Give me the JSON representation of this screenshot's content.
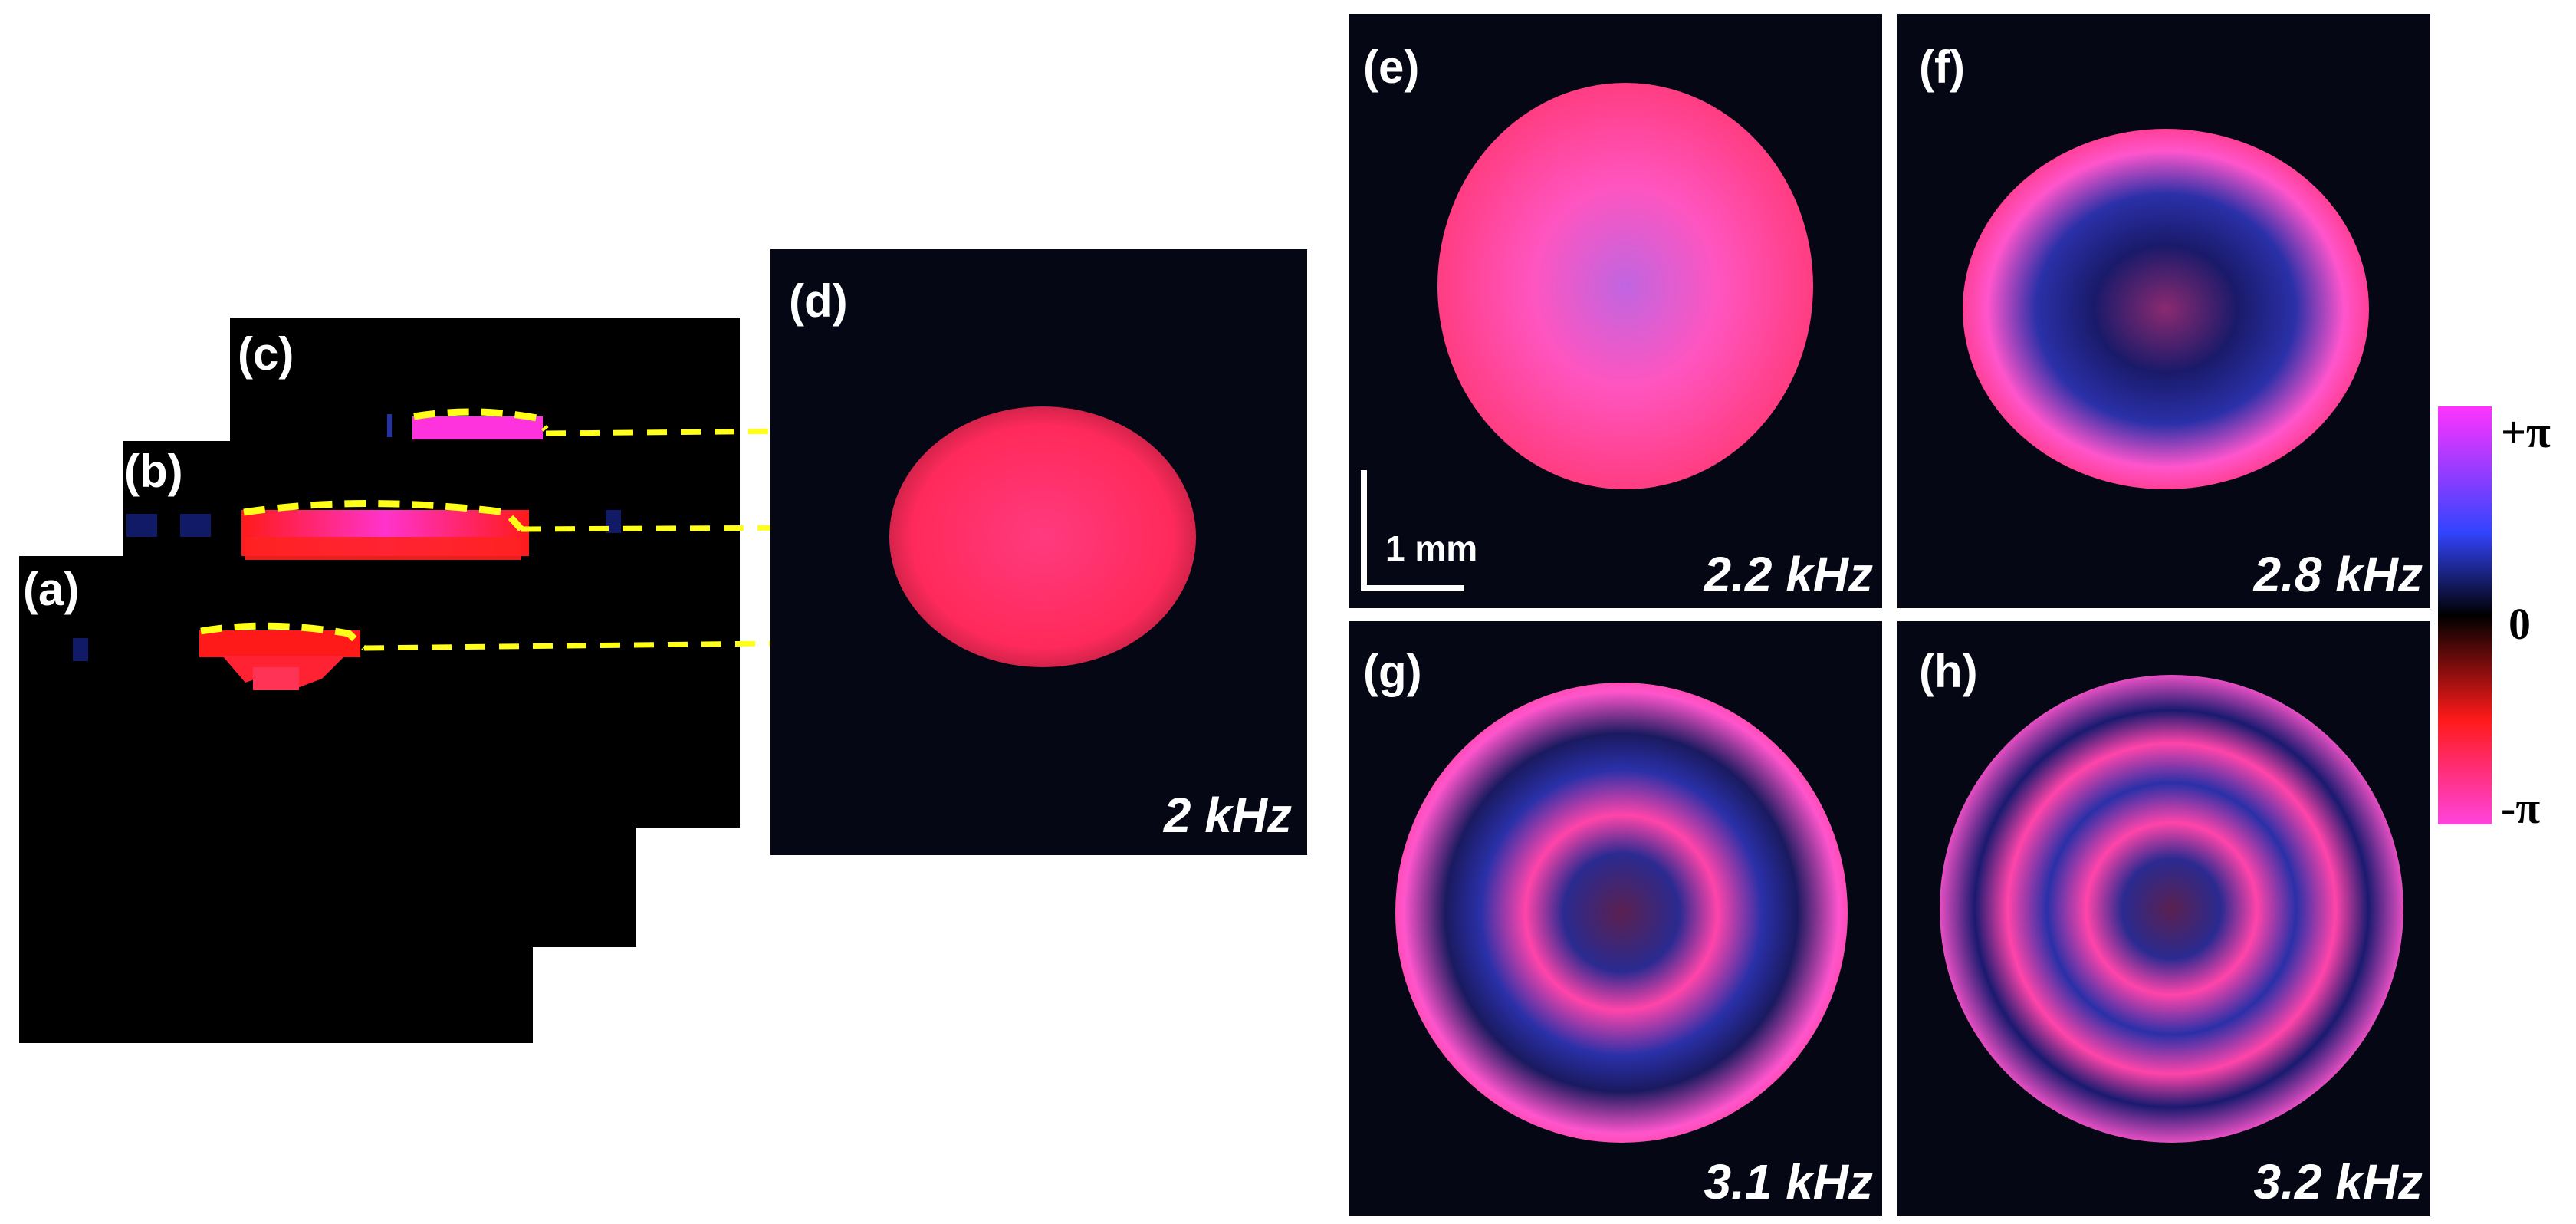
{
  "panels": {
    "a": {
      "label": "(a)"
    },
    "b": {
      "label": "(b)"
    },
    "c": {
      "label": "(c)"
    },
    "d": {
      "label": "(d)",
      "frequency": "2 kHz"
    },
    "e": {
      "label": "(e)",
      "frequency": "2.2 kHz"
    },
    "f": {
      "label": "(f)",
      "frequency": "2.8 kHz"
    },
    "g": {
      "label": "(g)",
      "frequency": "3.1 kHz"
    },
    "h": {
      "label": "(h)",
      "frequency": "3.2 kHz"
    }
  },
  "scale_bar": {
    "label": "1 mm"
  },
  "colorbar": {
    "top_label": "+π",
    "mid_label": "0",
    "bottom_label": "-π",
    "colors": [
      "#ff33ff",
      "#3344ff",
      "#000000",
      "#ff1a1a",
      "#ff44dd"
    ]
  },
  "colors": {
    "phase_red": "#ff2a55",
    "phase_magenta": "#ff55cc",
    "phase_blue": "#2a2aa0",
    "dashed_line": "#ffff1a"
  }
}
